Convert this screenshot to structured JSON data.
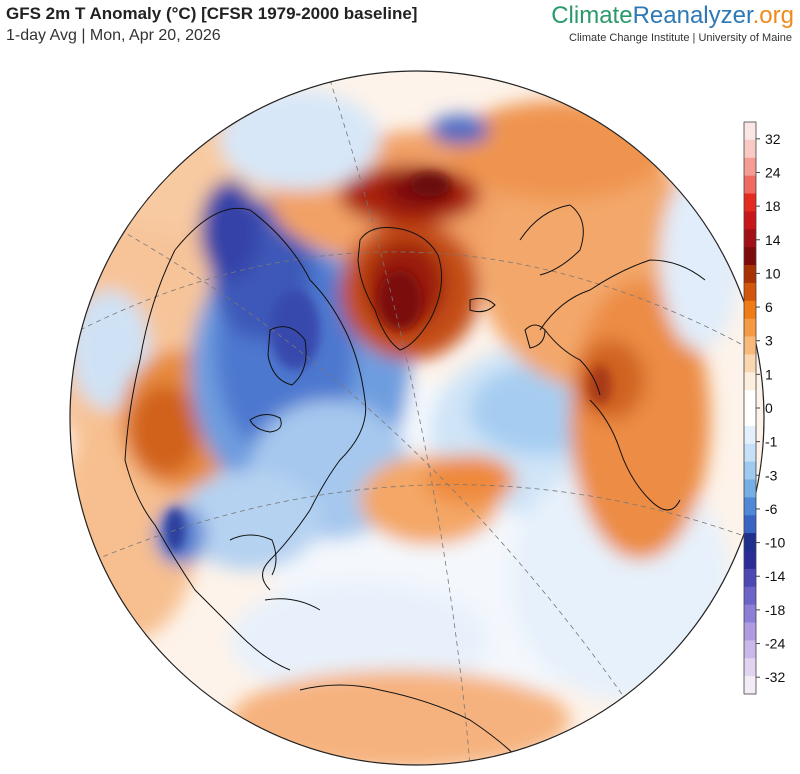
{
  "header": {
    "title": "GFS 2m T Anomaly (°C) [CFSR 1979-2000 baseline]",
    "subtitle": "1-day Avg | Mon, Apr 20, 2026"
  },
  "brand": {
    "part1": "Climate",
    "part2": "Reanalyzer",
    "part3": ".org",
    "tagline": "Climate Change Institute | University of Maine",
    "colors": {
      "climate": "#2a9a6a",
      "reanalyzer": "#2e78b5",
      "org": "#f08a1c"
    }
  },
  "map": {
    "projection": "orthographic",
    "variable": "2m temperature anomaly",
    "units": "°C",
    "anomaly_regions": [
      {
        "region": "Greenland",
        "anomaly": "warm",
        "max_approx": 12
      },
      {
        "region": "Arctic Ocean north of Greenland",
        "anomaly": "warm",
        "max_approx": 12
      },
      {
        "region": "Western United States",
        "anomaly": "warm",
        "max_approx": 7
      },
      {
        "region": "Western Europe and North Africa",
        "anomaly": "warm",
        "max_approx": 7
      },
      {
        "region": "Northern Siberia",
        "anomaly": "warm",
        "max_approx": 6
      },
      {
        "region": "Central Canada",
        "anomaly": "cold",
        "min_approx": -12
      },
      {
        "region": "Canadian Arctic Archipelago",
        "anomaly": "cold",
        "min_approx": -12
      },
      {
        "region": "Mid-Atlantic Ocean",
        "anomaly": "cold",
        "min_approx": -3
      },
      {
        "region": "Southern Mexico",
        "anomaly": "cold",
        "min_approx": -6
      },
      {
        "region": "North Atlantic off US East Coast",
        "anomaly": "warm",
        "max_approx": 4
      }
    ]
  },
  "legend": {
    "tick_labels": [
      "32",
      "24",
      "18",
      "14",
      "10",
      "6",
      "3",
      "1",
      "0",
      "-1",
      "-3",
      "-6",
      "-10",
      "-14",
      "-18",
      "-24",
      "-32"
    ],
    "colors": [
      "#fbe6e6",
      "#f9c9c4",
      "#f59d95",
      "#ef6b62",
      "#e52a20",
      "#c8161a",
      "#a30f16",
      "#7e0a0c",
      "#a83206",
      "#d2560b",
      "#f07b14",
      "#f59a42",
      "#f8b97a",
      "#fad6b1",
      "#fdeedd",
      "#ffffff",
      "#ffffff",
      "#e3effa",
      "#c6e1f7",
      "#9ecaf0",
      "#76aee6",
      "#4f88d7",
      "#3a64c4",
      "#1f2f8d",
      "#2a2d98",
      "#4b49b4",
      "#6c64c8",
      "#8d7fd6",
      "#ae9be1",
      "#c9b8ea",
      "#e1d4f0",
      "#f3ecf6"
    ]
  }
}
